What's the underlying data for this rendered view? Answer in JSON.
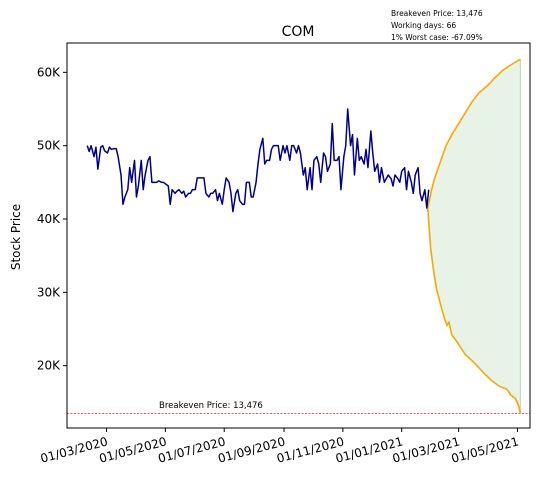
{
  "chart_data": {
    "type": "line",
    "title": "COM",
    "ylabel": "Stock Price",
    "xlabel": "",
    "xlim": [
      "2020-01-20",
      "2021-05-14"
    ],
    "ylim": [
      11500,
      64000
    ],
    "x_ticks": [
      {
        "date": "2020-03-01",
        "label": "01/03/2020"
      },
      {
        "date": "2020-05-01",
        "label": "01/05/2020"
      },
      {
        "date": "2020-07-01",
        "label": "01/07/2020"
      },
      {
        "date": "2020-09-01",
        "label": "01/09/2020"
      },
      {
        "date": "2020-11-01",
        "label": "01/11/2020"
      },
      {
        "date": "2021-01-01",
        "label": "01/01/2021"
      },
      {
        "date": "2021-03-01",
        "label": "01/03/2021"
      },
      {
        "date": "2021-05-01",
        "label": "01/05/2021"
      }
    ],
    "y_ticks": [
      {
        "value": 20000,
        "label": "20K"
      },
      {
        "value": 30000,
        "label": "30K"
      },
      {
        "value": 40000,
        "label": "40K"
      },
      {
        "value": 50000,
        "label": "50K"
      },
      {
        "value": 60000,
        "label": "60K"
      }
    ],
    "annotation_lines": [
      "Breakeven Price: 13,476",
      "Working days: 66",
      "1% Worst case: -67.09%"
    ],
    "breakeven": {
      "value": 13476,
      "label": "Breakeven Price: 13,476"
    },
    "colors": {
      "price": "#00008b",
      "forecast": "#ffa500",
      "fill": "#e6f2e6",
      "breakeven": "#d62728"
    },
    "series": [
      {
        "key": "price",
        "values": [
          [
            "2020-02-10",
            50000
          ],
          [
            "2020-02-12",
            49200
          ],
          [
            "2020-02-14",
            50000
          ],
          [
            "2020-02-17",
            48500
          ],
          [
            "2020-02-19",
            49800
          ],
          [
            "2020-02-21",
            46800
          ],
          [
            "2020-02-24",
            49800
          ],
          [
            "2020-02-26",
            50000
          ],
          [
            "2020-02-28",
            49300
          ],
          [
            "2020-03-02",
            49000
          ],
          [
            "2020-03-04",
            49800
          ],
          [
            "2020-03-06",
            49500
          ],
          [
            "2020-03-09",
            49600
          ],
          [
            "2020-03-11",
            49600
          ],
          [
            "2020-03-13",
            48500
          ],
          [
            "2020-03-16",
            46000
          ],
          [
            "2020-03-18",
            42000
          ],
          [
            "2020-03-20",
            43000
          ],
          [
            "2020-03-23",
            44000
          ],
          [
            "2020-03-25",
            47000
          ],
          [
            "2020-03-27",
            45000
          ],
          [
            "2020-03-30",
            48000
          ],
          [
            "2020-04-01",
            43000
          ],
          [
            "2020-04-03",
            44500
          ],
          [
            "2020-04-06",
            48000
          ],
          [
            "2020-04-08",
            44000
          ],
          [
            "2020-04-10",
            46000
          ],
          [
            "2020-04-13",
            48000
          ],
          [
            "2020-04-15",
            48500
          ],
          [
            "2020-04-17",
            45000
          ],
          [
            "2020-04-20",
            45000
          ],
          [
            "2020-04-22",
            45000
          ],
          [
            "2020-04-24",
            45200
          ],
          [
            "2020-04-27",
            45000
          ],
          [
            "2020-04-29",
            45000
          ],
          [
            "2020-05-04",
            44500
          ],
          [
            "2020-05-06",
            42000
          ],
          [
            "2020-05-08",
            44000
          ],
          [
            "2020-05-11",
            43500
          ],
          [
            "2020-05-13",
            43800
          ],
          [
            "2020-05-15",
            44000
          ],
          [
            "2020-05-18",
            43500
          ],
          [
            "2020-05-20",
            43800
          ],
          [
            "2020-05-22",
            43000
          ],
          [
            "2020-05-25",
            43500
          ],
          [
            "2020-05-27",
            43500
          ],
          [
            "2020-05-29",
            44000
          ],
          [
            "2020-06-01",
            44000
          ],
          [
            "2020-06-03",
            45600
          ],
          [
            "2020-06-05",
            45600
          ],
          [
            "2020-06-08",
            45600
          ],
          [
            "2020-06-10",
            45600
          ],
          [
            "2020-06-12",
            43500
          ],
          [
            "2020-06-15",
            43000
          ],
          [
            "2020-06-17",
            43500
          ],
          [
            "2020-06-19",
            43500
          ],
          [
            "2020-06-22",
            44000
          ],
          [
            "2020-06-24",
            42500
          ],
          [
            "2020-06-26",
            43500
          ],
          [
            "2020-06-29",
            42000
          ],
          [
            "2020-07-01",
            44000
          ],
          [
            "2020-07-03",
            45600
          ],
          [
            "2020-07-06",
            45000
          ],
          [
            "2020-07-08",
            43500
          ],
          [
            "2020-07-10",
            41000
          ],
          [
            "2020-07-13",
            43500
          ],
          [
            "2020-07-15",
            44000
          ],
          [
            "2020-07-17",
            42500
          ],
          [
            "2020-07-20",
            42000
          ],
          [
            "2020-07-22",
            42000
          ],
          [
            "2020-07-24",
            45000
          ],
          [
            "2020-07-27",
            45000
          ],
          [
            "2020-07-29",
            43000
          ],
          [
            "2020-07-31",
            43000
          ],
          [
            "2020-08-03",
            45000
          ],
          [
            "2020-08-05",
            47500
          ],
          [
            "2020-08-07",
            49500
          ],
          [
            "2020-08-10",
            51000
          ],
          [
            "2020-08-12",
            47500
          ],
          [
            "2020-08-14",
            48000
          ],
          [
            "2020-08-17",
            48000
          ],
          [
            "2020-08-19",
            49500
          ],
          [
            "2020-08-21",
            50000
          ],
          [
            "2020-08-24",
            50000
          ],
          [
            "2020-08-26",
            50000
          ],
          [
            "2020-08-28",
            48000
          ],
          [
            "2020-08-31",
            50000
          ],
          [
            "2020-09-02",
            49000
          ],
          [
            "2020-09-04",
            50000
          ],
          [
            "2020-09-07",
            48000
          ],
          [
            "2020-09-09",
            50000
          ],
          [
            "2020-09-11",
            50000
          ],
          [
            "2020-09-14",
            49000
          ],
          [
            "2020-09-16",
            50000
          ],
          [
            "2020-09-18",
            49000
          ],
          [
            "2020-09-21",
            46000
          ],
          [
            "2020-09-23",
            47000
          ],
          [
            "2020-09-25",
            44000
          ],
          [
            "2020-09-28",
            47000
          ],
          [
            "2020-09-30",
            44000
          ],
          [
            "2020-10-02",
            48000
          ],
          [
            "2020-10-05",
            48500
          ],
          [
            "2020-10-07",
            47500
          ],
          [
            "2020-10-09",
            45000
          ],
          [
            "2020-10-12",
            49000
          ],
          [
            "2020-10-14",
            48500
          ],
          [
            "2020-10-16",
            46500
          ],
          [
            "2020-10-19",
            47500
          ],
          [
            "2020-10-21",
            53000
          ],
          [
            "2020-10-23",
            48000
          ],
          [
            "2020-10-26",
            48000
          ],
          [
            "2020-10-28",
            48500
          ],
          [
            "2020-10-30",
            44000
          ],
          [
            "2020-11-02",
            48500
          ],
          [
            "2020-11-04",
            50000
          ],
          [
            "2020-11-06",
            55000
          ],
          [
            "2020-11-09",
            50000
          ],
          [
            "2020-11-11",
            51500
          ],
          [
            "2020-11-13",
            46000
          ],
          [
            "2020-11-16",
            51000
          ],
          [
            "2020-11-18",
            48000
          ],
          [
            "2020-11-20",
            48500
          ],
          [
            "2020-11-23",
            47500
          ],
          [
            "2020-11-25",
            49500
          ],
          [
            "2020-11-27",
            47000
          ],
          [
            "2020-11-30",
            52000
          ],
          [
            "2020-12-02",
            49000
          ],
          [
            "2020-12-04",
            46500
          ],
          [
            "2020-12-07",
            47500
          ],
          [
            "2020-12-09",
            45000
          ],
          [
            "2020-12-11",
            47000
          ],
          [
            "2020-12-14",
            45000
          ],
          [
            "2020-12-16",
            45500
          ],
          [
            "2020-12-18",
            46000
          ],
          [
            "2020-12-21",
            45500
          ],
          [
            "2020-12-23",
            44500
          ],
          [
            "2020-12-25",
            46000
          ],
          [
            "2020-12-28",
            45500
          ],
          [
            "2020-12-30",
            45000
          ],
          [
            "2021-01-01",
            46500
          ],
          [
            "2021-01-04",
            47000
          ],
          [
            "2021-01-06",
            44000
          ],
          [
            "2021-01-08",
            46500
          ],
          [
            "2021-01-11",
            45000
          ],
          [
            "2021-01-13",
            43500
          ],
          [
            "2021-01-15",
            46000
          ],
          [
            "2021-01-18",
            47000
          ],
          [
            "2021-01-20",
            43500
          ],
          [
            "2021-01-22",
            42500
          ],
          [
            "2021-01-25",
            44000
          ],
          [
            "2021-01-27",
            41500
          ],
          [
            "2021-01-29",
            44000
          ]
        ]
      },
      {
        "key": "upper",
        "values": [
          [
            "2021-01-28",
            41500
          ],
          [
            "2021-02-01",
            44000
          ],
          [
            "2021-02-04",
            45500
          ],
          [
            "2021-02-08",
            47000
          ],
          [
            "2021-02-12",
            48500
          ],
          [
            "2021-02-16",
            50000
          ],
          [
            "2021-02-22",
            51500
          ],
          [
            "2021-03-01",
            53000
          ],
          [
            "2021-03-08",
            54500
          ],
          [
            "2021-03-15",
            56000
          ],
          [
            "2021-03-22",
            57200
          ],
          [
            "2021-03-31",
            58200
          ],
          [
            "2021-04-08",
            59300
          ],
          [
            "2021-04-16",
            60300
          ],
          [
            "2021-04-24",
            61000
          ],
          [
            "2021-05-04",
            61800
          ]
        ]
      },
      {
        "key": "lower",
        "values": [
          [
            "2021-01-28",
            41500
          ],
          [
            "2021-01-31",
            36000
          ],
          [
            "2021-02-03",
            33000
          ],
          [
            "2021-02-06",
            30500
          ],
          [
            "2021-02-09",
            29000
          ],
          [
            "2021-02-12",
            27500
          ],
          [
            "2021-02-15",
            26200
          ],
          [
            "2021-02-17",
            25500
          ],
          [
            "2021-02-19",
            25900
          ],
          [
            "2021-02-22",
            24200
          ],
          [
            "2021-02-26",
            23500
          ],
          [
            "2021-03-03",
            22500
          ],
          [
            "2021-03-08",
            21500
          ],
          [
            "2021-03-14",
            20800
          ],
          [
            "2021-03-20",
            20000
          ],
          [
            "2021-03-27",
            19000
          ],
          [
            "2021-04-04",
            18000
          ],
          [
            "2021-04-12",
            17200
          ],
          [
            "2021-04-20",
            16800
          ],
          [
            "2021-04-24",
            16000
          ],
          [
            "2021-04-29",
            15500
          ],
          [
            "2021-05-02",
            14600
          ],
          [
            "2021-05-04",
            13500
          ]
        ]
      }
    ]
  }
}
